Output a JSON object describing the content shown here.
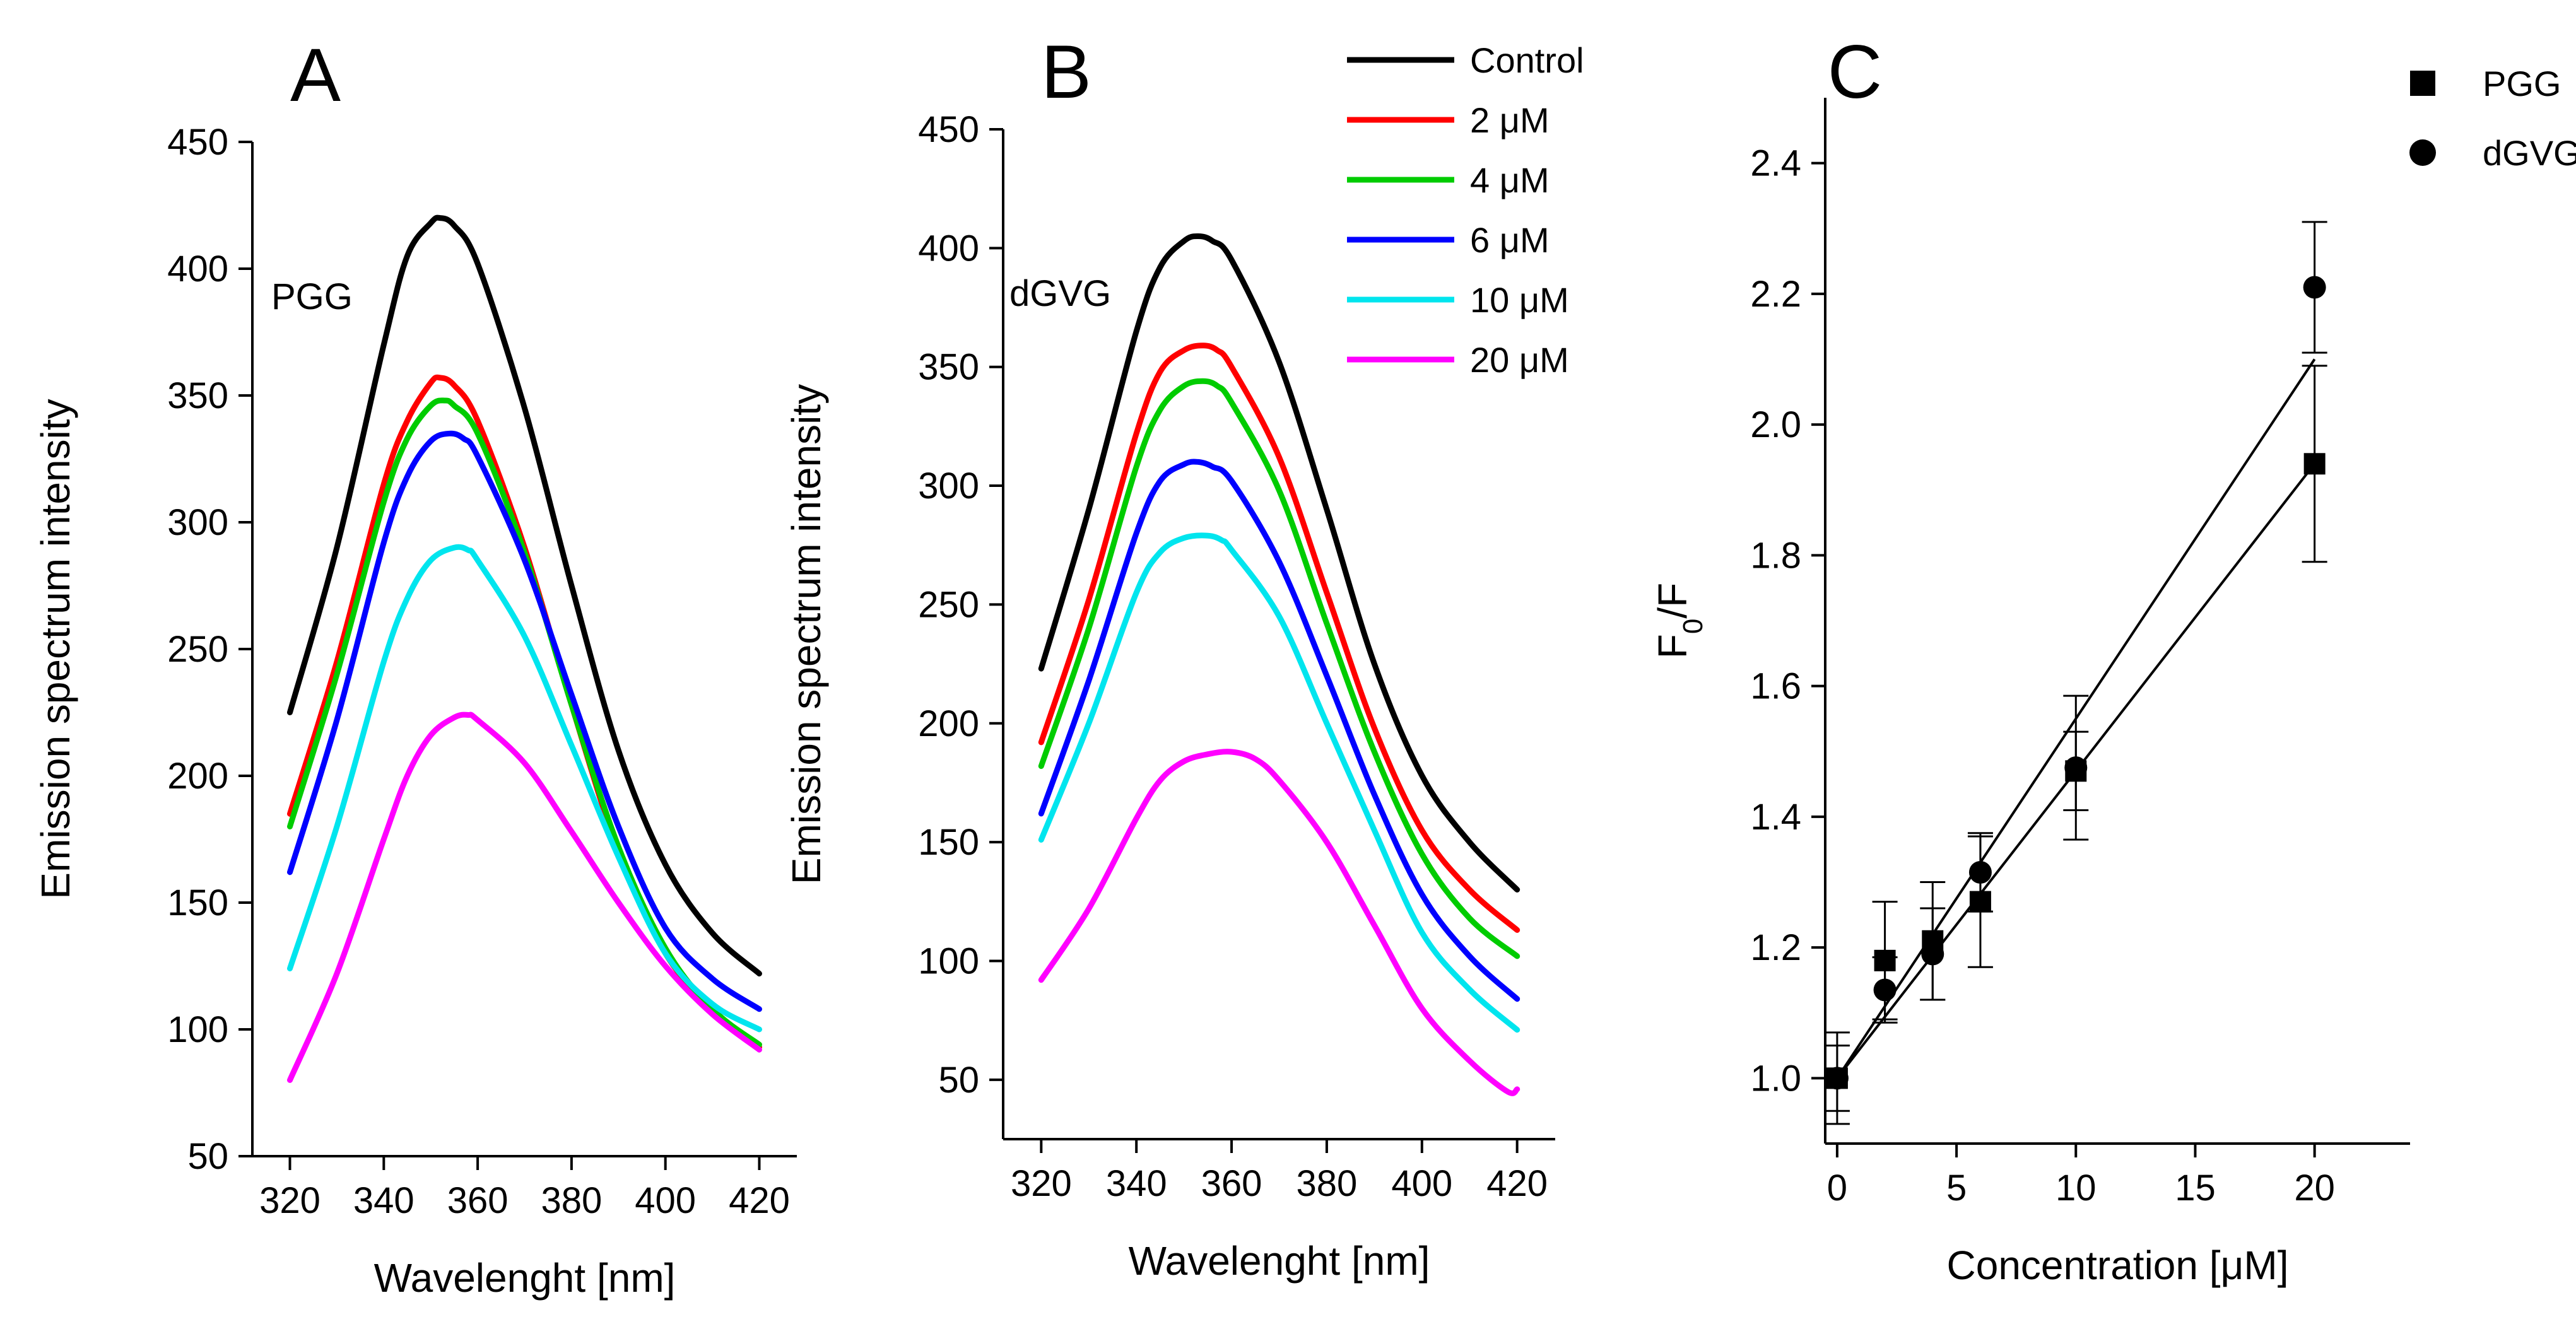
{
  "chart_data": [
    {
      "panel": "A",
      "type": "line",
      "inner_label": "PGG",
      "xlabel": "Wavelenght [nm]",
      "ylabel": "Emission spectrum intensity",
      "xlim": [
        312,
        428
      ],
      "ylim": [
        50,
        450
      ],
      "xticks": [
        320,
        340,
        360,
        380,
        400,
        420
      ],
      "yticks": [
        50,
        100,
        150,
        200,
        250,
        300,
        350,
        400,
        450
      ],
      "series": [
        {
          "name": "Control",
          "color": "#000000",
          "x": [
            320,
            330,
            340,
            345,
            350,
            352,
            355,
            360,
            370,
            380,
            390,
            400,
            410,
            420
          ],
          "y": [
            225,
            290,
            370,
            405,
            418,
            420,
            417,
            402,
            345,
            275,
            210,
            165,
            138,
            122
          ]
        },
        {
          "name": "2 μM",
          "color": "#ff0000",
          "x": [
            320,
            330,
            340,
            345,
            350,
            352,
            355,
            360,
            370,
            380,
            390,
            400,
            410,
            420
          ],
          "y": [
            185,
            245,
            315,
            340,
            355,
            357,
            354,
            340,
            290,
            228,
            170,
            130,
            108,
            93
          ]
        },
        {
          "name": "4 μM",
          "color": "#00cc00",
          "x": [
            320,
            330,
            340,
            345,
            350,
            353,
            355,
            360,
            370,
            380,
            390,
            400,
            410,
            420
          ],
          "y": [
            180,
            240,
            308,
            333,
            346,
            348,
            346,
            335,
            288,
            228,
            172,
            132,
            108,
            94
          ]
        },
        {
          "name": "6 μM",
          "color": "#0000ff",
          "x": [
            320,
            330,
            340,
            345,
            350,
            354,
            357,
            360,
            370,
            380,
            390,
            400,
            410,
            420
          ],
          "y": [
            162,
            222,
            292,
            318,
            332,
            335,
            333,
            326,
            285,
            232,
            180,
            140,
            120,
            108
          ]
        },
        {
          "name": "10 μM",
          "color": "#00e5ee",
          "x": [
            320,
            330,
            340,
            345,
            350,
            355,
            358,
            360,
            370,
            380,
            390,
            400,
            410,
            420
          ],
          "y": [
            124,
            180,
            245,
            270,
            285,
            290,
            289,
            285,
            255,
            212,
            168,
            130,
            110,
            100
          ]
        },
        {
          "name": "20 μM",
          "color": "#ff00ff",
          "x": [
            320,
            330,
            340,
            345,
            350,
            355,
            358,
            360,
            370,
            380,
            390,
            400,
            410,
            420
          ],
          "y": [
            80,
            122,
            175,
            200,
            216,
            223,
            224,
            222,
            205,
            178,
            150,
            125,
            106,
            92
          ]
        }
      ]
    },
    {
      "panel": "B",
      "type": "line",
      "inner_label": "dGVG",
      "xlabel": "Wavelenght [nm]",
      "ylabel": "Emission spectrum intensity",
      "xlim": [
        312,
        428
      ],
      "ylim": [
        25,
        450
      ],
      "xticks": [
        320,
        340,
        360,
        380,
        400,
        420
      ],
      "yticks": [
        50,
        100,
        150,
        200,
        250,
        300,
        350,
        400,
        450
      ],
      "series": [
        {
          "name": "Control",
          "color": "#000000",
          "x": [
            320,
            330,
            340,
            345,
            350,
            353,
            356,
            360,
            370,
            380,
            390,
            400,
            410,
            420
          ],
          "y": [
            223,
            290,
            365,
            392,
            403,
            405,
            403,
            395,
            352,
            290,
            225,
            178,
            150,
            130
          ]
        },
        {
          "name": "2 μM",
          "color": "#ff0000",
          "x": [
            320,
            330,
            340,
            345,
            350,
            354,
            357,
            360,
            370,
            380,
            390,
            400,
            410,
            420
          ],
          "y": [
            192,
            252,
            322,
            348,
            357,
            359,
            357,
            350,
            312,
            255,
            198,
            155,
            130,
            113
          ]
        },
        {
          "name": "4 μM",
          "color": "#00cc00",
          "x": [
            320,
            330,
            340,
            345,
            350,
            354,
            357,
            360,
            370,
            380,
            390,
            400,
            410,
            420
          ],
          "y": [
            182,
            240,
            308,
            332,
            342,
            344,
            342,
            335,
            298,
            242,
            188,
            145,
            118,
            102
          ]
        },
        {
          "name": "6 μM",
          "color": "#0000ff",
          "x": [
            320,
            330,
            340,
            345,
            350,
            353,
            356,
            360,
            370,
            380,
            390,
            400,
            410,
            420
          ],
          "y": [
            162,
            218,
            280,
            302,
            309,
            310,
            308,
            302,
            268,
            220,
            170,
            128,
            102,
            84
          ]
        },
        {
          "name": "10 μM",
          "color": "#00e5ee",
          "x": [
            320,
            330,
            340,
            345,
            350,
            355,
            358,
            360,
            370,
            380,
            390,
            400,
            410,
            420
          ],
          "y": [
            151,
            200,
            255,
            272,
            278,
            279,
            277,
            273,
            245,
            200,
            155,
            112,
            88,
            71
          ]
        },
        {
          "name": "20 μM",
          "color": "#ff00ff",
          "x": [
            320,
            330,
            340,
            345,
            350,
            355,
            360,
            365,
            370,
            380,
            390,
            400,
            410,
            418,
            420
          ],
          "y": [
            92,
            122,
            160,
            176,
            184,
            187,
            188,
            185,
            176,
            150,
            115,
            80,
            58,
            45,
            46
          ]
        }
      ]
    },
    {
      "panel": "C",
      "type": "scatter",
      "xlabel": "Concentration [μM]",
      "ylabel": "F0/F",
      "ylabel_main": "F",
      "ylabel_sub": "0",
      "ylabel_tail": "/F",
      "xlim": [
        -0.5,
        24
      ],
      "ylim": [
        0.9,
        2.5
      ],
      "xticks": [
        0,
        5,
        10,
        15,
        20
      ],
      "yticks": [
        1.0,
        1.2,
        1.4,
        1.6,
        1.8,
        2.0,
        2.2,
        2.4
      ],
      "series": [
        {
          "name": "PGG",
          "marker": "square",
          "x": [
            0,
            2,
            4,
            6,
            10,
            20
          ],
          "y": [
            1.0,
            1.18,
            1.21,
            1.27,
            1.47,
            1.94
          ],
          "err": [
            0.07,
            0.09,
            0.09,
            0.1,
            0.06,
            0.15
          ],
          "fit": [
            1.0,
            1.94
          ]
        },
        {
          "name": "dGVG",
          "marker": "circle",
          "x": [
            0,
            2,
            4,
            6,
            10,
            20
          ],
          "y": [
            1.0,
            1.135,
            1.19,
            1.315,
            1.475,
            2.21
          ],
          "err": [
            0.05,
            0.05,
            0.07,
            0.06,
            0.11,
            0.1
          ],
          "fit": [
            1.0,
            2.1
          ]
        }
      ]
    }
  ]
}
